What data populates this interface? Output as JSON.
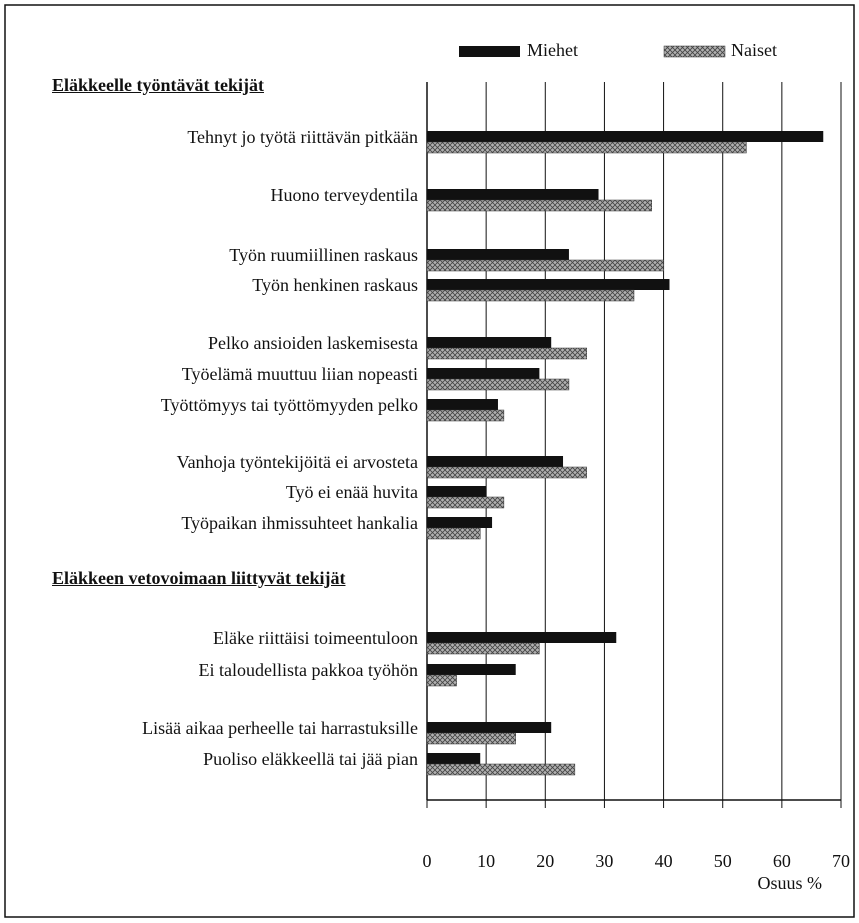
{
  "chart_data": {
    "type": "barh",
    "sections": [
      "Eläkkeelle työntävät tekijät",
      "Eläkkeen vetovoimaan liittyvät tekijät"
    ],
    "categories": [
      "Tehnyt jo työtä riittävän pitkään",
      "Huono terveydentila",
      "Työn ruumiillinen raskaus",
      "Työn henkinen raskaus",
      "Pelko ansioiden laskemisesta",
      "Työelämä muuttuu liian nopeasti",
      "Työttömyys tai työttömyyden pelko",
      "Vanhoja työntekijöitä ei arvosteta",
      "Työ ei enää huvita",
      "Työpaikan ihmissuhteet hankalia",
      "Eläke riittäisi toimeentuloon",
      "Ei taloudellista pakkoa työhön",
      "Lisää aikaa perheelle tai harrastuksille",
      "Puoliso eläkkeellä tai jää pian"
    ],
    "series": [
      {
        "name": "Miehet",
        "color": "#111111",
        "values": [
          67,
          29,
          24,
          41,
          21,
          19,
          12,
          23,
          10,
          11,
          32,
          15,
          21,
          9
        ]
      },
      {
        "name": "Naiset",
        "color": "#b0b0b0",
        "values": [
          54,
          38,
          40,
          35,
          27,
          24,
          13,
          27,
          13,
          9,
          19,
          5,
          15,
          25
        ]
      }
    ],
    "xlabel": "Osuus %",
    "xlim": [
      0,
      70
    ],
    "xticks": [
      0,
      10,
      20,
      30,
      40,
      50,
      60,
      70
    ],
    "grid": true
  }
}
